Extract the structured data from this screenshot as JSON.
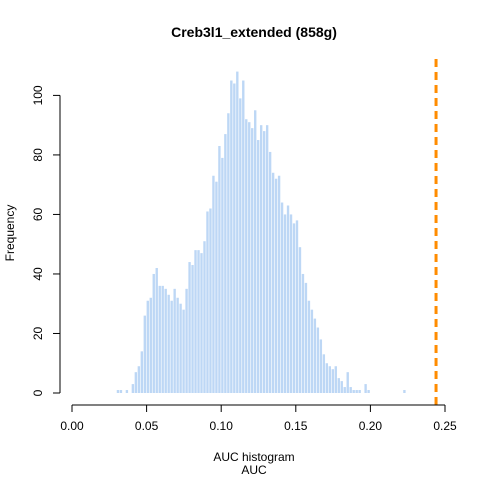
{
  "chart_data": {
    "type": "bar",
    "title": "Creb3l1_extended (858g)",
    "xlabel": "AUC histogram",
    "xlabel2": "AUC",
    "ylabel": "Frequency",
    "xlim": [
      0,
      0.25
    ],
    "ylim": [
      0,
      110
    ],
    "xticks": [
      "0.00",
      "0.05",
      "0.10",
      "0.15",
      "0.20",
      "0.25"
    ],
    "yticks": [
      "0",
      "20",
      "40",
      "60",
      "80",
      "100"
    ],
    "bin_width": 0.002,
    "bins_start": [
      0.03,
      0.032,
      0.034,
      0.036,
      0.038,
      0.04,
      0.042,
      0.044,
      0.046,
      0.048,
      0.05,
      0.052,
      0.054,
      0.056,
      0.058,
      0.06,
      0.062,
      0.064,
      0.066,
      0.068,
      0.07,
      0.072,
      0.074,
      0.076,
      0.078,
      0.08,
      0.082,
      0.084,
      0.086,
      0.088,
      0.09,
      0.092,
      0.094,
      0.096,
      0.098,
      0.1,
      0.102,
      0.104,
      0.106,
      0.108,
      0.11,
      0.112,
      0.114,
      0.116,
      0.118,
      0.12,
      0.122,
      0.124,
      0.126,
      0.128,
      0.13,
      0.132,
      0.134,
      0.136,
      0.138,
      0.14,
      0.142,
      0.144,
      0.146,
      0.148,
      0.15,
      0.152,
      0.154,
      0.156,
      0.158,
      0.16,
      0.162,
      0.164,
      0.166,
      0.168,
      0.17,
      0.172,
      0.174,
      0.176,
      0.178,
      0.18,
      0.182,
      0.184,
      0.186,
      0.188,
      0.19,
      0.192,
      0.194,
      0.196,
      0.198,
      0.2,
      0.202,
      0.204,
      0.206,
      0.208,
      0.21,
      0.212,
      0.214,
      0.216,
      0.218,
      0.22,
      0.222
    ],
    "frequencies": [
      1,
      1,
      0,
      1,
      0,
      3,
      7,
      9,
      14,
      26,
      31,
      32,
      40,
      42,
      36,
      36,
      35,
      33,
      31,
      35,
      32,
      30,
      28,
      35,
      44,
      43,
      48,
      48,
      47,
      51,
      61,
      62,
      73,
      71,
      83,
      79,
      87,
      94,
      105,
      104,
      108,
      99,
      105,
      92,
      91,
      89,
      95,
      85,
      90,
      88,
      90,
      81,
      74,
      72,
      73,
      64,
      60,
      63,
      60,
      57,
      58,
      49,
      40,
      37,
      31,
      28,
      25,
      22,
      18,
      13,
      10,
      9,
      8,
      9,
      5,
      4,
      2,
      7,
      2,
      1,
      1,
      1,
      0,
      3,
      1,
      0,
      0,
      0,
      0,
      0,
      0,
      0,
      0,
      0,
      0,
      0,
      1
    ],
    "reference_line": {
      "x": 0.244,
      "color": "#ff8c00",
      "style": "dashed"
    },
    "bar_color": "#bdd7f5"
  }
}
